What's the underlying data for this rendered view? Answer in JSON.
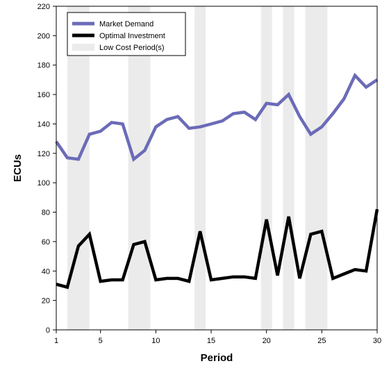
{
  "chart_data": {
    "type": "line",
    "title": "",
    "xlabel": "Period",
    "ylabel": "ECUs",
    "xlim": [
      1,
      30
    ],
    "ylim": [
      0,
      220
    ],
    "x_ticks": [
      1,
      5,
      10,
      15,
      20,
      25,
      30
    ],
    "y_ticks": [
      0,
      20,
      40,
      60,
      80,
      100,
      120,
      140,
      160,
      180,
      200,
      220
    ],
    "grid": false,
    "legend_position": "top-left",
    "x": [
      1,
      2,
      3,
      4,
      5,
      6,
      7,
      8,
      9,
      10,
      11,
      12,
      13,
      14,
      15,
      16,
      17,
      18,
      19,
      20,
      21,
      22,
      23,
      24,
      25,
      26,
      27,
      28,
      29,
      30
    ],
    "series": [
      {
        "name": "Market Demand",
        "color": "#6b6bb8",
        "values": [
          128,
          117,
          116,
          133,
          135,
          141,
          140,
          116,
          122,
          138,
          143,
          145,
          137,
          138,
          140,
          142,
          147,
          148,
          143,
          154,
          153,
          160,
          145,
          133,
          138,
          147,
          157,
          173,
          165,
          170
        ]
      },
      {
        "name": "Optimal Investment",
        "color": "#000000",
        "values": [
          31,
          29,
          57,
          65,
          33,
          34,
          34,
          58,
          60,
          34,
          35,
          35,
          33,
          67,
          34,
          35,
          36,
          36,
          35,
          75,
          37,
          77,
          35,
          65,
          67,
          35,
          38,
          41,
          40,
          82
        ]
      }
    ],
    "shaded_periods": {
      "name": "Low Cost Period(s)",
      "color": "#ebebeb",
      "ranges": [
        [
          2,
          4
        ],
        [
          7.5,
          9.5
        ],
        [
          13.5,
          14.5
        ],
        [
          19.5,
          20.5
        ],
        [
          21.5,
          22.5
        ],
        [
          23.5,
          25.5
        ]
      ]
    }
  }
}
